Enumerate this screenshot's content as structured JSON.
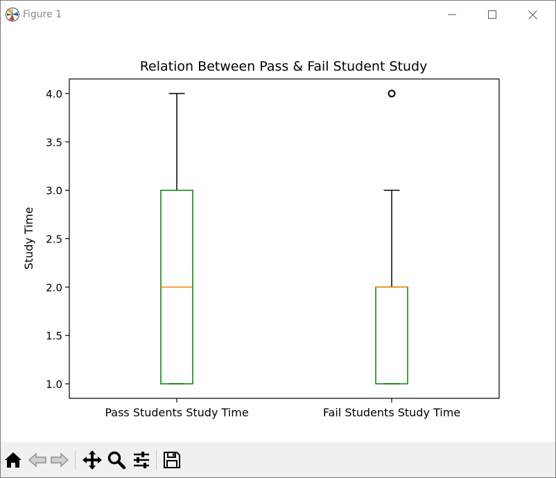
{
  "window": {
    "title": "Figure 1",
    "icons": {
      "app": "matplotlib-logo-icon",
      "minimize": "minimize-icon",
      "maximize": "maximize-icon",
      "close": "close-icon"
    }
  },
  "toolbar": {
    "buttons": [
      {
        "name": "home-icon",
        "enabled": true
      },
      {
        "name": "back-icon",
        "enabled": false
      },
      {
        "name": "forward-icon",
        "enabled": false
      },
      {
        "name": "pan-icon",
        "enabled": true
      },
      {
        "name": "zoom-icon",
        "enabled": true
      },
      {
        "name": "configure-subplots-icon",
        "enabled": true
      },
      {
        "name": "save-icon",
        "enabled": true
      }
    ]
  },
  "chart_data": {
    "type": "box",
    "title": "Relation Between Pass & Fail Student Study",
    "xlabel": "",
    "ylabel": "Study Time",
    "ylim": [
      0.85,
      4.15
    ],
    "yticks": [
      "1.0",
      "1.5",
      "2.0",
      "2.5",
      "3.0",
      "3.5",
      "4.0"
    ],
    "categories": [
      "Pass Students Study Time",
      "Fail Students Study Time"
    ],
    "boxes": [
      {
        "name": "Pass Students Study Time",
        "whisker_low": 1.0,
        "q1": 1.0,
        "median": 2.0,
        "q3": 3.0,
        "whisker_high": 4.0,
        "fliers": []
      },
      {
        "name": "Fail Students Study Time",
        "whisker_low": 1.0,
        "q1": 1.0,
        "median": 2.0,
        "q3": 2.0,
        "whisker_high": 3.0,
        "fliers": [
          4.0
        ]
      }
    ],
    "grid": false,
    "colors": {
      "box": "#008000",
      "median": "#ff7f0e",
      "whisker": "#000000"
    }
  }
}
